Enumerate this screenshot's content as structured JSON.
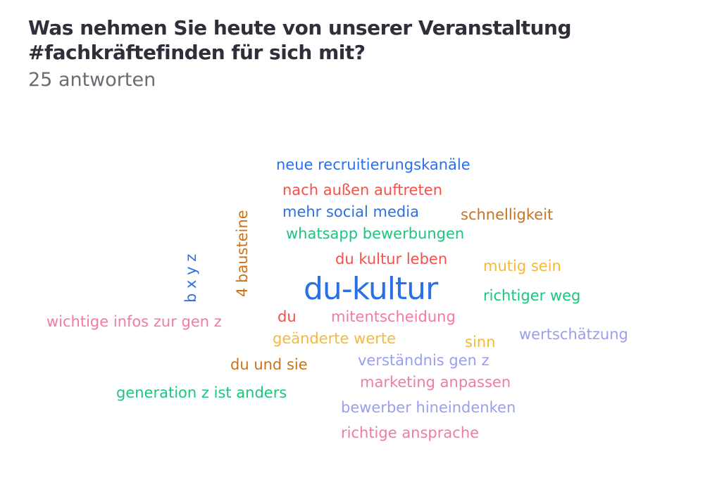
{
  "header": {
    "title": "Was nehmen Sie heute von unserer Veranstaltung #fachkräftefinden für sich mit?",
    "response_count": "25 antworten"
  },
  "colors": {
    "blue": "#2b6fe8",
    "red": "#f2524c",
    "orange": "#c8741f",
    "green": "#1ec47e",
    "yellow": "#f6b83a",
    "pink": "#f27aa6",
    "lavender": "#9a9ef0"
  },
  "chart_data": {
    "type": "wordcloud",
    "words": [
      {
        "text": "neue recruitierungskanäle",
        "color": "blue"
      },
      {
        "text": "nach außen auftreten",
        "color": "red"
      },
      {
        "text": "mehr social media",
        "color": "blue"
      },
      {
        "text": "schnelligkeit",
        "color": "orange"
      },
      {
        "text": "whatsapp bewerbungen",
        "color": "green"
      },
      {
        "text": "4 bausteine",
        "color": "orange",
        "orientation": "vertical"
      },
      {
        "text": "b x y z",
        "color": "blue",
        "orientation": "vertical"
      },
      {
        "text": "du kultur leben",
        "color": "red"
      },
      {
        "text": "mutig sein",
        "color": "yellow"
      },
      {
        "text": "du-kultur",
        "color": "blue",
        "emphasis": "largest"
      },
      {
        "text": "richtiger weg",
        "color": "green"
      },
      {
        "text": "wichtige infos zur gen z",
        "color": "pink"
      },
      {
        "text": "du",
        "color": "red"
      },
      {
        "text": "mitentscheidung",
        "color": "pink"
      },
      {
        "text": "geänderte werte",
        "color": "yellow"
      },
      {
        "text": "sinn",
        "color": "yellow"
      },
      {
        "text": "wertschätzung",
        "color": "lavender"
      },
      {
        "text": "du und sie",
        "color": "orange"
      },
      {
        "text": "verständnis gen z",
        "color": "lavender"
      },
      {
        "text": "marketing anpassen",
        "color": "pink"
      },
      {
        "text": "generation z ist anders",
        "color": "green"
      },
      {
        "text": "bewerber hineindenken",
        "color": "lavender"
      },
      {
        "text": "richtige ansprache",
        "color": "pink"
      }
    ]
  }
}
